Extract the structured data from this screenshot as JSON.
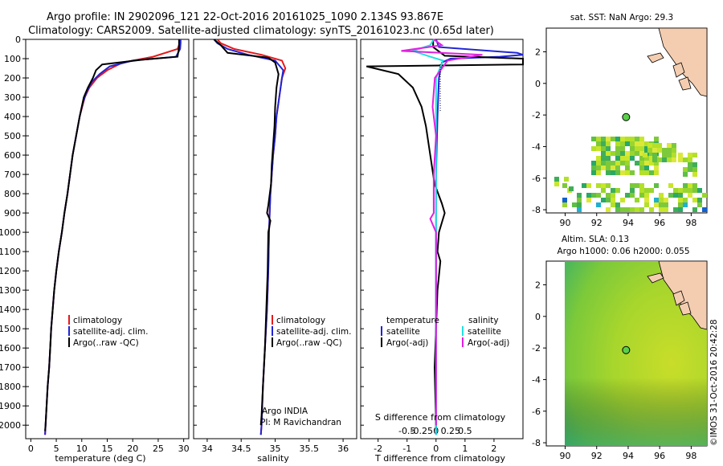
{
  "header": {
    "line1": "Argo profile: IN 2902096_121 22-Oct-2016 20161025_1090 2.134S 93.867E",
    "line2": "Climatology: CARS2009. Satellite-adjusted climatology: synTS_20161023.nc (0.65d later)"
  },
  "depth_axis": {
    "ticks": [
      0,
      100,
      200,
      300,
      400,
      500,
      600,
      700,
      800,
      900,
      1000,
      1100,
      1200,
      1300,
      1400,
      1500,
      1600,
      1700,
      1800,
      1900,
      2000
    ],
    "range": [
      0,
      2070
    ]
  },
  "colors": {
    "climatology": "#e41a1c",
    "satellite": "#1f24d6",
    "argo": "#000000",
    "salinity_sat": "#22e0e0",
    "salinity_argo": "#e020e0"
  },
  "legend_a": {
    "climatology": "climatology",
    "satellite": "satellite-adj. clim.",
    "argo": "Argo(..raw -QC)"
  },
  "legend_diff": {
    "temp_head": "temperature",
    "sal_head": "salinity",
    "temp_sat": "satellite",
    "temp_argo": "Argo(-adj)",
    "sal_sat": "satellite",
    "sal_argo": "Argo(-adj)"
  },
  "annotations": {
    "argo_india": "Argo INDIA",
    "pi": "PI: M Ravichandran"
  },
  "maps": {
    "sst_title": "sat. SST: NaN Argo: 29.3",
    "sla_title1": "Altim. SLA: 0.13",
    "sla_title2": "Argo h1000: 0.06 h2000: 0.055",
    "lon_ticks": [
      90,
      92,
      94,
      96,
      98
    ],
    "lat_ticks": [
      2,
      0,
      -2,
      -4,
      -6,
      -8
    ],
    "argo_lon": 93.867,
    "argo_lat": -2.134
  },
  "credit": "©IMOS 31-Oct-2016 20:42:28",
  "chart_data": [
    {
      "type": "line",
      "xlabel": "temperature (deg C)",
      "xlim": [
        -1,
        31
      ],
      "xticks": [
        0,
        5,
        10,
        15,
        20,
        25,
        30
      ],
      "ylim": [
        0,
        2070
      ],
      "series": [
        {
          "name": "climatology",
          "color": "#e41a1c",
          "points": [
            [
              29.2,
              0
            ],
            [
              29.2,
              20
            ],
            [
              28.8,
              50
            ],
            [
              24,
              90
            ],
            [
              18,
              120
            ],
            [
              15,
              160
            ],
            [
              13,
              200
            ],
            [
              11.5,
              250
            ],
            [
              10.6,
              300
            ],
            [
              9.6,
              400
            ],
            [
              8.9,
              500
            ],
            [
              8.2,
              600
            ],
            [
              7.7,
              700
            ],
            [
              7.2,
              800
            ],
            [
              6.6,
              900
            ],
            [
              6.1,
              1000
            ],
            [
              5.5,
              1100
            ],
            [
              5,
              1200
            ],
            [
              4.6,
              1300
            ],
            [
              4.3,
              1400
            ],
            [
              4,
              1500
            ],
            [
              3.8,
              1600
            ],
            [
              3.6,
              1700
            ],
            [
              3.3,
              1800
            ],
            [
              3.1,
              1900
            ],
            [
              2.9,
              2000
            ],
            [
              2.8,
              2050
            ]
          ]
        },
        {
          "name": "satellite-adj. clim.",
          "color": "#1f24d6",
          "points": [
            [
              29.4,
              0
            ],
            [
              29.4,
              20
            ],
            [
              29.3,
              50
            ],
            [
              28.5,
              90
            ],
            [
              20,
              110
            ],
            [
              15.5,
              140
            ],
            [
              13.5,
              180
            ],
            [
              12,
              220
            ],
            [
              11,
              270
            ],
            [
              10.2,
              330
            ],
            [
              9.6,
              400
            ],
            [
              8.9,
              500
            ],
            [
              8.2,
              600
            ],
            [
              7.7,
              700
            ],
            [
              7.2,
              800
            ],
            [
              6.6,
              900
            ],
            [
              6.1,
              1000
            ],
            [
              5.5,
              1100
            ],
            [
              5,
              1200
            ],
            [
              4.6,
              1300
            ],
            [
              4.3,
              1400
            ],
            [
              4,
              1500
            ],
            [
              3.8,
              1600
            ],
            [
              3.6,
              1700
            ],
            [
              3.3,
              1800
            ],
            [
              3.1,
              1900
            ],
            [
              2.9,
              2000
            ],
            [
              2.8,
              2050
            ]
          ]
        },
        {
          "name": "Argo(..raw -QC)",
          "color": "#000000",
          "points": [
            [
              29.1,
              0
            ],
            [
              29.1,
              40
            ],
            [
              28.8,
              90
            ],
            [
              22,
              105
            ],
            [
              14,
              130
            ],
            [
              12.8,
              160
            ],
            [
              12.2,
              200
            ],
            [
              11.2,
              250
            ],
            [
              10.4,
              300
            ],
            [
              9.6,
              400
            ],
            [
              8.9,
              500
            ],
            [
              8.2,
              600
            ],
            [
              7.7,
              700
            ],
            [
              7.2,
              800
            ],
            [
              6.6,
              900
            ],
            [
              6.1,
              1000
            ],
            [
              5.5,
              1100
            ],
            [
              5,
              1200
            ],
            [
              4.6,
              1300
            ],
            [
              4.3,
              1400
            ],
            [
              4,
              1500
            ],
            [
              3.8,
              1600
            ],
            [
              3.6,
              1700
            ],
            [
              3.3,
              1800
            ],
            [
              3.1,
              1900
            ],
            [
              2.9,
              2000
            ],
            [
              2.8,
              2030
            ]
          ]
        }
      ]
    },
    {
      "type": "line",
      "xlabel": "salinity",
      "xlim": [
        33.8,
        36.2
      ],
      "xticks": [
        34,
        34.5,
        35,
        35.5,
        36
      ],
      "ylim": [
        0,
        2070
      ],
      "series": [
        {
          "name": "climatology",
          "color": "#e41a1c",
          "points": [
            [
              34.15,
              0
            ],
            [
              34.2,
              20
            ],
            [
              34.4,
              50
            ],
            [
              34.8,
              80
            ],
            [
              35.1,
              110
            ],
            [
              35.15,
              150
            ],
            [
              35.1,
              200
            ],
            [
              35.06,
              300
            ],
            [
              35.02,
              400
            ],
            [
              35,
              500
            ],
            [
              34.97,
              600
            ],
            [
              34.95,
              700
            ],
            [
              34.93,
              800
            ],
            [
              34.92,
              900
            ],
            [
              34.91,
              1000
            ],
            [
              34.9,
              1200
            ],
            [
              34.88,
              1400
            ],
            [
              34.85,
              1600
            ],
            [
              34.82,
              1800
            ],
            [
              34.8,
              2000
            ],
            [
              34.79,
              2050
            ]
          ]
        },
        {
          "name": "satellite-adj. clim.",
          "color": "#1f24d6",
          "points": [
            [
              34.1,
              0
            ],
            [
              34.15,
              20
            ],
            [
              34.3,
              50
            ],
            [
              34.6,
              80
            ],
            [
              35,
              110
            ],
            [
              35.12,
              160
            ],
            [
              35.1,
              200
            ],
            [
              35.06,
              300
            ],
            [
              35.02,
              400
            ],
            [
              35,
              500
            ],
            [
              34.97,
              600
            ],
            [
              34.95,
              700
            ],
            [
              34.93,
              800
            ],
            [
              34.92,
              900
            ],
            [
              34.91,
              1000
            ],
            [
              34.9,
              1200
            ],
            [
              34.88,
              1400
            ],
            [
              34.85,
              1600
            ],
            [
              34.82,
              1800
            ],
            [
              34.8,
              2000
            ],
            [
              34.79,
              2050
            ]
          ]
        },
        {
          "name": "Argo(..raw -QC)",
          "color": "#000000",
          "points": [
            [
              34.1,
              0
            ],
            [
              34.2,
              30
            ],
            [
              34.3,
              70
            ],
            [
              34.9,
              95
            ],
            [
              35.0,
              120
            ],
            [
              35.05,
              180
            ],
            [
              35.02,
              250
            ],
            [
              35,
              350
            ],
            [
              34.99,
              450
            ],
            [
              34.97,
              550
            ],
            [
              34.95,
              650
            ],
            [
              34.94,
              750
            ],
            [
              34.9,
              860
            ],
            [
              34.88,
              900
            ],
            [
              34.93,
              940
            ],
            [
              34.9,
              1000
            ],
            [
              34.89,
              1200
            ],
            [
              34.87,
              1400
            ],
            [
              34.85,
              1600
            ],
            [
              34.82,
              1800
            ],
            [
              34.8,
              1950
            ],
            [
              34.79,
              2000
            ]
          ]
        }
      ]
    },
    {
      "type": "line",
      "xlabel": "T difference from climatology",
      "xlabel_top": "S difference from climatology",
      "xlim": [
        -2.6,
        3
      ],
      "xticks": [
        -2,
        -1,
        0,
        1,
        2
      ],
      "xticks_s": [
        -0.5,
        -0.25,
        0,
        0.25,
        0.5
      ],
      "ylim": [
        0,
        2070
      ],
      "series": [
        {
          "name": "satellite",
          "quantity": "temperature",
          "color": "#1f24d6",
          "points": [
            [
              0,
              0
            ],
            [
              0.1,
              40
            ],
            [
              2.8,
              70
            ],
            [
              3.2,
              80
            ],
            [
              2.2,
              90
            ],
            [
              0.5,
              100
            ],
            [
              0.2,
              120
            ],
            [
              0.1,
              200
            ],
            [
              0.05,
              400
            ],
            [
              0,
              700
            ],
            [
              0,
              1200
            ],
            [
              0,
              2050
            ]
          ]
        },
        {
          "name": "Argo(-adj)",
          "quantity": "temperature",
          "color": "#000000",
          "points": [
            [
              -0.1,
              0
            ],
            [
              -0.1,
              40
            ],
            [
              0.3,
              85
            ],
            [
              3.1,
              100
            ],
            [
              3.1,
              130
            ],
            [
              -2.4,
              140
            ],
            [
              -1.3,
              180
            ],
            [
              -0.8,
              250
            ],
            [
              -0.5,
              350
            ],
            [
              -0.35,
              450
            ],
            [
              -0.2,
              600
            ],
            [
              -0.05,
              750
            ],
            [
              0.2,
              850
            ],
            [
              0.3,
              900
            ],
            [
              0.2,
              950
            ],
            [
              0.1,
              1000
            ],
            [
              0.05,
              1100
            ],
            [
              0.15,
              1150
            ],
            [
              0.05,
              1300
            ],
            [
              0,
              1500
            ],
            [
              -0.05,
              1700
            ],
            [
              0,
              2000
            ],
            [
              0,
              2030
            ]
          ]
        },
        {
          "name": "satellite",
          "quantity": "salinity",
          "color": "#22e0e0",
          "points": [
            [
              -0.02,
              0
            ],
            [
              -0.05,
              30
            ],
            [
              -0.2,
              60
            ],
            [
              -0.05,
              90
            ],
            [
              0.06,
              110
            ],
            [
              0.0,
              200
            ],
            [
              0.0,
              400
            ],
            [
              0.0,
              700
            ],
            [
              0.0,
              1200
            ],
            [
              0.0,
              2050
            ]
          ]
        },
        {
          "name": "Argo(-adj)",
          "quantity": "salinity",
          "color": "#e020e0",
          "points": [
            [
              -0.02,
              0
            ],
            [
              0.05,
              30
            ],
            [
              -0.3,
              60
            ],
            [
              0.4,
              80
            ],
            [
              0.1,
              110
            ],
            [
              -0.01,
              200
            ],
            [
              -0.03,
              350
            ],
            [
              0.0,
              500
            ],
            [
              -0.02,
              700
            ],
            [
              -0.02,
              900
            ],
            [
              -0.05,
              930
            ],
            [
              0.0,
              1000
            ],
            [
              0.0,
              1500
            ],
            [
              0.0,
              2000
            ]
          ]
        }
      ]
    }
  ]
}
